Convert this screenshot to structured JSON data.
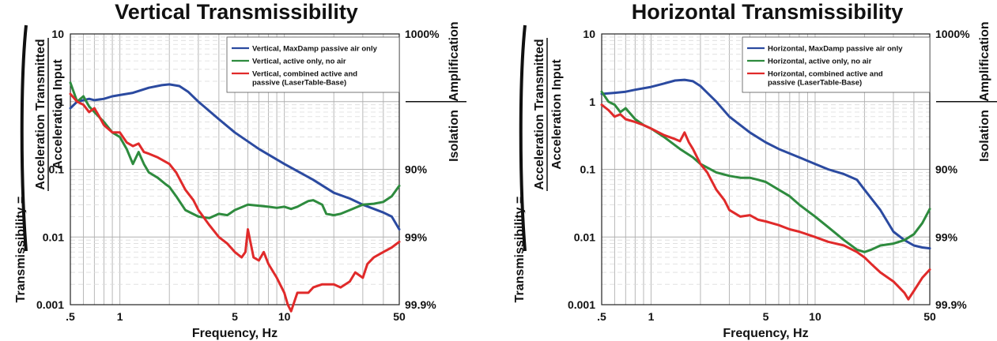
{
  "chart_data": [
    {
      "type": "line",
      "title": "Vertical Transmissibility",
      "xlabel": "Frequency, Hz",
      "ylabel": "Transmissibility =",
      "ylabel_fraction": {
        "numerator": "Acceleration Transmitted",
        "denominator": "Acceleration Input"
      },
      "x_scale": "log",
      "y_scale": "log",
      "xlim": [
        0.5,
        50
      ],
      "ylim": [
        0.001,
        10
      ],
      "x_ticks": [
        0.5,
        1,
        5,
        10,
        50
      ],
      "x_tick_labels": [
        ".5",
        "1",
        "5",
        "10",
        "50"
      ],
      "y_ticks": [
        0.001,
        0.01,
        0.1,
        1,
        10
      ],
      "y_tick_labels": [
        "0.001",
        "0.01",
        "0.1",
        "1",
        "10"
      ],
      "right_ticks": [
        {
          "y": 10,
          "label": "1000%"
        },
        {
          "y": 0.1,
          "label": "90%"
        },
        {
          "y": 0.01,
          "label": "99%"
        },
        {
          "y": 0.001,
          "label": "99.9%"
        }
      ],
      "side_labels": {
        "top": "Amplification",
        "bottom": "Isolation"
      },
      "grid": true,
      "legend_position": "top-right",
      "series": [
        {
          "name": "Vertical, MaxDamp passive air only",
          "color": "#2b4aa0",
          "x": [
            0.5,
            0.55,
            0.6,
            0.65,
            0.7,
            0.8,
            0.9,
            1.0,
            1.2,
            1.5,
            1.8,
            2.0,
            2.3,
            2.6,
            3.0,
            4.0,
            5.0,
            7.0,
            10,
            15,
            20,
            25,
            30,
            40,
            45,
            50
          ],
          "y": [
            0.8,
            1.0,
            1.05,
            1.1,
            1.05,
            1.1,
            1.2,
            1.25,
            1.35,
            1.6,
            1.75,
            1.8,
            1.7,
            1.4,
            1.0,
            0.55,
            0.35,
            0.2,
            0.12,
            0.07,
            0.045,
            0.037,
            0.03,
            0.023,
            0.02,
            0.013
          ]
        },
        {
          "name": "Vertical, active only, no air",
          "color": "#2e8b3e",
          "x": [
            0.5,
            0.55,
            0.6,
            0.65,
            0.7,
            0.8,
            0.9,
            1.0,
            1.1,
            1.2,
            1.3,
            1.4,
            1.5,
            1.7,
            1.9,
            2.0,
            2.2,
            2.5,
            3.0,
            3.5,
            4.0,
            4.5,
            5,
            6,
            7,
            8,
            9,
            10,
            11,
            12,
            14,
            15,
            17,
            18,
            20,
            22,
            25,
            30,
            35,
            40,
            45,
            50
          ],
          "y": [
            1.9,
            1.0,
            1.2,
            0.85,
            0.7,
            0.5,
            0.35,
            0.3,
            0.2,
            0.12,
            0.18,
            0.12,
            0.09,
            0.075,
            0.06,
            0.055,
            0.04,
            0.025,
            0.02,
            0.019,
            0.022,
            0.021,
            0.025,
            0.03,
            0.029,
            0.028,
            0.027,
            0.028,
            0.026,
            0.028,
            0.034,
            0.035,
            0.03,
            0.022,
            0.021,
            0.022,
            0.025,
            0.03,
            0.031,
            0.033,
            0.04,
            0.057
          ]
        },
        {
          "name": "Vertical, combined active and passive (LaserTable-Base)",
          "color": "#e02a2a",
          "x": [
            0.5,
            0.55,
            0.6,
            0.65,
            0.7,
            0.75,
            0.8,
            0.9,
            1.0,
            1.1,
            1.2,
            1.3,
            1.4,
            1.5,
            1.7,
            2.0,
            2.2,
            2.5,
            2.8,
            3.0,
            3.5,
            4.0,
            4.5,
            5.0,
            5.5,
            5.8,
            6.0,
            6.5,
            7.0,
            7.5,
            8.0,
            9.0,
            10,
            10.5,
            11,
            12,
            14,
            15,
            17,
            20,
            22,
            25,
            27,
            30,
            32,
            35,
            40,
            45,
            50
          ],
          "y": [
            1.3,
            1.0,
            0.9,
            0.7,
            0.8,
            0.6,
            0.45,
            0.35,
            0.35,
            0.25,
            0.22,
            0.24,
            0.18,
            0.17,
            0.15,
            0.12,
            0.09,
            0.05,
            0.035,
            0.025,
            0.015,
            0.01,
            0.008,
            0.006,
            0.005,
            0.006,
            0.013,
            0.005,
            0.0045,
            0.006,
            0.004,
            0.0025,
            0.0015,
            0.001,
            0.0008,
            0.0015,
            0.0015,
            0.0018,
            0.002,
            0.002,
            0.0018,
            0.0022,
            0.003,
            0.0025,
            0.004,
            0.005,
            0.006,
            0.007,
            0.0085
          ]
        }
      ]
    },
    {
      "type": "line",
      "title": "Horizontal Transmissibility",
      "xlabel": "Frequency, Hz",
      "ylabel": "Transmissibility =",
      "ylabel_fraction": {
        "numerator": "Acceleration Transmitted",
        "denominator": "Acceleration Input"
      },
      "x_scale": "log",
      "y_scale": "log",
      "xlim": [
        0.5,
        50
      ],
      "ylim": [
        0.001,
        10
      ],
      "x_ticks": [
        0.5,
        1,
        5,
        10,
        50
      ],
      "x_tick_labels": [
        ".5",
        "1",
        "5",
        "10",
        "50"
      ],
      "y_ticks": [
        0.001,
        0.01,
        0.1,
        1,
        10
      ],
      "y_tick_labels": [
        "0.001",
        "0.01",
        "0.1",
        "1",
        "10"
      ],
      "right_ticks": [
        {
          "y": 10,
          "label": "1000%"
        },
        {
          "y": 0.1,
          "label": "90%"
        },
        {
          "y": 0.01,
          "label": "99%"
        },
        {
          "y": 0.001,
          "label": "99.9%"
        }
      ],
      "side_labels": {
        "top": "Amplification",
        "bottom": "Isolation"
      },
      "grid": true,
      "legend_position": "top-right",
      "series": [
        {
          "name": "Horizontal, MaxDamp passive air only",
          "color": "#2b4aa0",
          "x": [
            0.5,
            0.6,
            0.7,
            0.8,
            1.0,
            1.2,
            1.4,
            1.6,
            1.8,
            2.0,
            2.5,
            3.0,
            4.0,
            5.0,
            6.0,
            8.0,
            10,
            12,
            15,
            18,
            20,
            25,
            30,
            35,
            40,
            45,
            50
          ],
          "y": [
            1.3,
            1.35,
            1.4,
            1.5,
            1.65,
            1.85,
            2.05,
            2.1,
            2.0,
            1.7,
            1.0,
            0.6,
            0.35,
            0.25,
            0.2,
            0.15,
            0.12,
            0.1,
            0.085,
            0.07,
            0.05,
            0.025,
            0.012,
            0.009,
            0.0075,
            0.007,
            0.0068
          ]
        },
        {
          "name": "Horizontal, active only, no air",
          "color": "#2e8b3e",
          "x": [
            0.5,
            0.55,
            0.6,
            0.65,
            0.7,
            0.8,
            0.9,
            1.0,
            1.2,
            1.5,
            1.8,
            2.0,
            2.5,
            3.0,
            3.5,
            4.0,
            4.5,
            5.0,
            6.0,
            7.0,
            8.0,
            10,
            12,
            15,
            18,
            20,
            22,
            25,
            30,
            35,
            40,
            45,
            50
          ],
          "y": [
            1.4,
            1.0,
            0.9,
            0.7,
            0.8,
            0.55,
            0.45,
            0.4,
            0.3,
            0.2,
            0.15,
            0.12,
            0.09,
            0.08,
            0.075,
            0.075,
            0.07,
            0.065,
            0.05,
            0.04,
            0.03,
            0.02,
            0.014,
            0.009,
            0.0065,
            0.006,
            0.0065,
            0.0075,
            0.008,
            0.009,
            0.011,
            0.016,
            0.026
          ]
        },
        {
          "name": "Horizontal, combined active and passive (LaserTable-Base)",
          "color": "#e02a2a",
          "x": [
            0.5,
            0.55,
            0.6,
            0.65,
            0.7,
            0.8,
            0.9,
            1.0,
            1.2,
            1.4,
            1.5,
            1.6,
            1.7,
            1.8,
            2.0,
            2.2,
            2.5,
            2.8,
            3.0,
            3.5,
            4.0,
            4.5,
            5.0,
            6.0,
            7.0,
            8.0,
            10,
            12,
            15,
            18,
            20,
            22,
            25,
            30,
            35,
            37,
            40,
            45,
            50
          ],
          "y": [
            0.9,
            0.75,
            0.6,
            0.65,
            0.55,
            0.5,
            0.45,
            0.4,
            0.32,
            0.28,
            0.26,
            0.35,
            0.25,
            0.2,
            0.12,
            0.09,
            0.05,
            0.035,
            0.025,
            0.02,
            0.021,
            0.018,
            0.017,
            0.015,
            0.013,
            0.012,
            0.01,
            0.0085,
            0.0075,
            0.006,
            0.005,
            0.004,
            0.003,
            0.0022,
            0.0015,
            0.0012,
            0.0016,
            0.0025,
            0.0033
          ]
        }
      ]
    }
  ]
}
